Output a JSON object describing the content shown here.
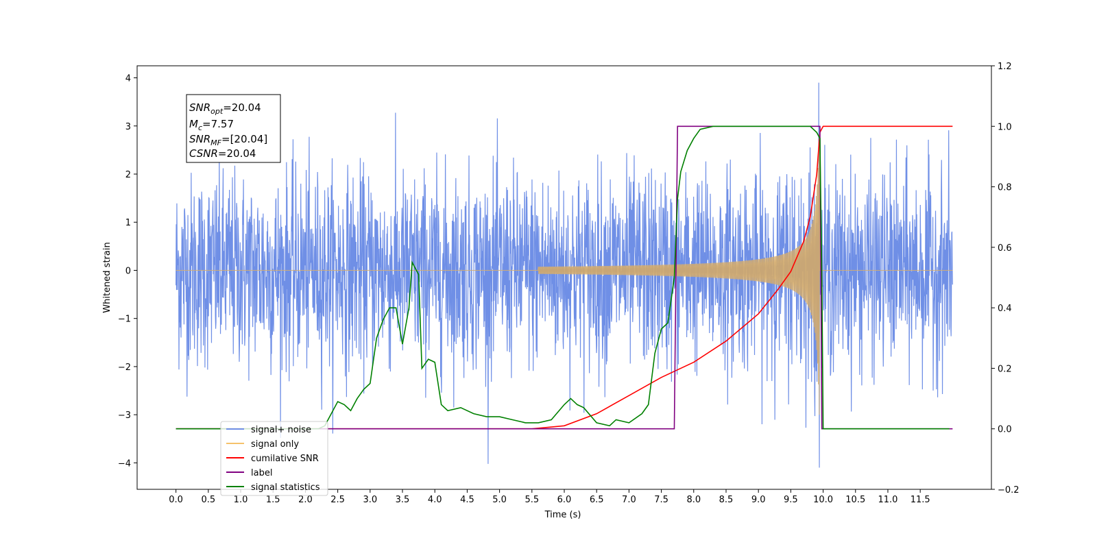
{
  "chart_data": {
    "type": "line",
    "title": "",
    "xlabel": "Time (s)",
    "ylabel": "Whitened strain",
    "ylabel_right": "",
    "xlim": [
      -0.6,
      12.6
    ],
    "ylim": [
      -4.55,
      4.25
    ],
    "ylim_right": [
      -0.2,
      1.2
    ],
    "x_ticks": [
      "0.0",
      "0.5",
      "1.0",
      "1.5",
      "2.0",
      "2.5",
      "3.0",
      "3.5",
      "4.0",
      "4.5",
      "5.0",
      "5.5",
      "6.0",
      "6.5",
      "7.0",
      "7.5",
      "8.0",
      "8.5",
      "9.0",
      "9.5",
      "10.0",
      "10.5",
      "11.0",
      "11.5"
    ],
    "y_ticks_left": [
      "4",
      "3",
      "2",
      "1",
      "0",
      "−1",
      "−2",
      "−3",
      "−4"
    ],
    "y_ticks_right": [
      "1.2",
      "1.0",
      "0.8",
      "0.6",
      "0.4",
      "0.2",
      "0.0",
      "−0.2"
    ],
    "grid": false,
    "legend_position": "lower-left",
    "annotation": {
      "snr_opt": "20.04",
      "mc": "7.57",
      "snr_mf": "[20.04]",
      "csnr": "20.04"
    },
    "series": [
      {
        "name": "signal+ noise",
        "color": "#6f8fe6",
        "axis": "left",
        "description_values": "white noise, std ~1, range about [-4.1, 3.9], t in [0, 12]"
      },
      {
        "name": "signal only",
        "color": "#f5c26b",
        "axis": "left",
        "chirp_start": 5.6,
        "merger": 9.95,
        "peak_amplitude": 3.0
      },
      {
        "name": "cumilative SNR",
        "color": "#ff0000",
        "axis": "right",
        "x": [
          0,
          5.5,
          6.0,
          6.5,
          7.0,
          7.5,
          8.0,
          8.5,
          9.0,
          9.3,
          9.5,
          9.7,
          9.8,
          9.9,
          9.95,
          10.0,
          12.0
        ],
        "y": [
          0,
          0,
          0.01,
          0.05,
          0.11,
          0.17,
          0.22,
          0.29,
          0.38,
          0.46,
          0.52,
          0.62,
          0.7,
          0.84,
          0.98,
          1.0,
          1.0
        ]
      },
      {
        "name": "label",
        "color": "#800080",
        "axis": "right",
        "x": [
          0,
          7.7,
          7.75,
          9.95,
          9.98,
          12.0
        ],
        "y": [
          0,
          0,
          1,
          1,
          0,
          0
        ]
      },
      {
        "name": "signal statistics",
        "color": "#008000",
        "axis": "right",
        "x": [
          0,
          2.2,
          2.3,
          2.4,
          2.5,
          2.6,
          2.7,
          2.8,
          2.9,
          3.0,
          3.1,
          3.2,
          3.3,
          3.4,
          3.5,
          3.6,
          3.65,
          3.75,
          3.8,
          3.9,
          4.0,
          4.1,
          4.2,
          4.4,
          4.6,
          4.8,
          5.0,
          5.2,
          5.4,
          5.6,
          5.8,
          6.0,
          6.1,
          6.2,
          6.3,
          6.5,
          6.7,
          6.8,
          7.0,
          7.2,
          7.3,
          7.4,
          7.5,
          7.6,
          7.7,
          7.75,
          7.8,
          7.9,
          8.0,
          8.1,
          8.3,
          8.5,
          9.8,
          9.9,
          9.95,
          9.98,
          10.0,
          11.95
        ],
        "y": [
          0,
          0,
          0.01,
          0.05,
          0.09,
          0.08,
          0.06,
          0.1,
          0.13,
          0.15,
          0.3,
          0.36,
          0.4,
          0.4,
          0.28,
          0.4,
          0.55,
          0.51,
          0.2,
          0.23,
          0.22,
          0.08,
          0.06,
          0.07,
          0.05,
          0.04,
          0.04,
          0.03,
          0.02,
          0.02,
          0.03,
          0.08,
          0.1,
          0.08,
          0.07,
          0.02,
          0.01,
          0.03,
          0.02,
          0.05,
          0.08,
          0.25,
          0.33,
          0.35,
          0.5,
          0.76,
          0.85,
          0.92,
          0.96,
          0.99,
          1.0,
          1.0,
          1.0,
          0.98,
          0.96,
          0.5,
          0.0,
          0.0
        ]
      }
    ]
  },
  "legend": [
    {
      "label": "signal+ noise",
      "color": "#6f8fe6"
    },
    {
      "label": "signal only",
      "color": "#f5c26b"
    },
    {
      "label": "cumilative SNR",
      "color": "#ff0000"
    },
    {
      "label": "label",
      "color": "#800080"
    },
    {
      "label": "signal statistics",
      "color": "#008000"
    }
  ]
}
